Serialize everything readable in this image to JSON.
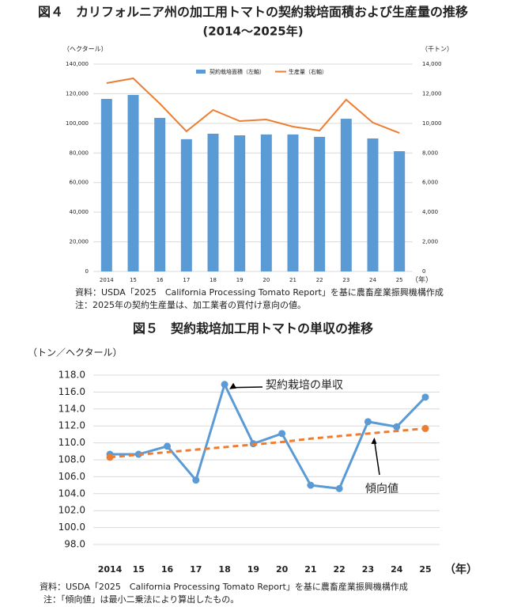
{
  "chart_data": [
    {
      "type": "bar_line",
      "title": "図４　カリフォルニア州の加工用トマトの契約栽培面積および生産量の推移",
      "subtitle": "(2014～2025年)",
      "y_label": "（ヘクタール）",
      "y2_label": "（千トン）",
      "x_unit": "（年）",
      "categories": [
        "2014",
        "15",
        "16",
        "17",
        "18",
        "19",
        "20",
        "21",
        "22",
        "23",
        "24",
        "25"
      ],
      "series": [
        {
          "name": "契約栽培面積（左軸）",
          "type": "bar",
          "color": "#5b9bd5",
          "values": [
            116500,
            119200,
            103700,
            89300,
            93000,
            91900,
            92500,
            92500,
            90900,
            103100,
            89800,
            81200
          ]
        },
        {
          "name": "生産量（右軸）",
          "type": "line",
          "axis": "y2",
          "color": "#ed7d31",
          "values": [
            12720,
            13040,
            11330,
            9460,
            10900,
            10150,
            10260,
            9780,
            9510,
            11600,
            10050,
            9350
          ]
        }
      ],
      "ylim": [
        0,
        140000
      ],
      "yticks": [
        0,
        {
          "value": 20000,
          "label": "20,000"
        },
        {
          "value": 40000,
          "label": "40,000"
        },
        {
          "value": 60000,
          "label": "60,000"
        },
        {
          "value": 80000,
          "label": "80,000"
        },
        {
          "value": 100000,
          "label": "100,000"
        },
        {
          "value": 120000,
          "label": "120,000"
        },
        {
          "value": 140000,
          "label": "140,000"
        }
      ],
      "y2lim": [
        0,
        14000
      ],
      "y2ticks": [
        0,
        {
          "value": 2000,
          "label": "2,000"
        },
        {
          "value": 4000,
          "label": "4,000"
        },
        {
          "value": 6000,
          "label": "6,000"
        },
        {
          "value": 8000,
          "label": "8,000"
        },
        {
          "value": 10000,
          "label": "10,000"
        },
        {
          "value": 12000,
          "label": "12,000"
        },
        {
          "value": 14000,
          "label": "14,000"
        }
      ],
      "grid": true,
      "legend": "top",
      "source": "資料：USDA「2025　California Processing Tomato Report」を基に農畜産業振興機構作成",
      "note": "注：2025年の契約生産量は、加工業者の買付け意向の値。"
    },
    {
      "type": "line",
      "title": "図５　契約栽培加工用トマトの単収の推移",
      "y_label": "（トン／ヘクタール）",
      "x_unit": "（年）",
      "categories": [
        "2014",
        "15",
        "16",
        "17",
        "18",
        "19",
        "20",
        "21",
        "22",
        "23",
        "24",
        "25"
      ],
      "series": [
        {
          "name": "契約栽培の単収",
          "color": "#5b9bd5",
          "values": [
            108.65,
            108.65,
            109.6,
            105.6,
            116.9,
            109.9,
            111.1,
            105.0,
            104.6,
            112.5,
            111.9,
            115.4
          ]
        },
        {
          "name": "傾向値",
          "color": "#ed7d31",
          "dashed": true,
          "values": [
            108.3,
            108.6,
            108.9,
            109.2,
            109.5,
            109.8,
            110.1,
            110.5,
            110.8,
            111.1,
            111.4,
            111.7
          ]
        }
      ],
      "ylim": [
        98,
        118
      ],
      "yticks": [
        {
          "value": 98,
          "label": "98.0"
        },
        {
          "value": 100,
          "label": "100.0"
        },
        {
          "value": 102,
          "label": "102.0"
        },
        {
          "value": 104,
          "label": "104.0"
        },
        {
          "value": 106,
          "label": "106.0"
        },
        {
          "value": 108,
          "label": "108.0"
        },
        {
          "value": 110,
          "label": "110.0"
        },
        {
          "value": 112,
          "label": "112.0"
        },
        {
          "value": 114,
          "label": "114.0"
        },
        {
          "value": 116,
          "label": "116.0"
        },
        {
          "value": 118,
          "label": "118.0"
        }
      ],
      "grid": true,
      "source": "資料：USDA「2025　California Processing Tomato Report」を基に農畜産業振興機構作成",
      "note": "注：「傾向値」は最小二乗法により算出したもの。"
    }
  ]
}
